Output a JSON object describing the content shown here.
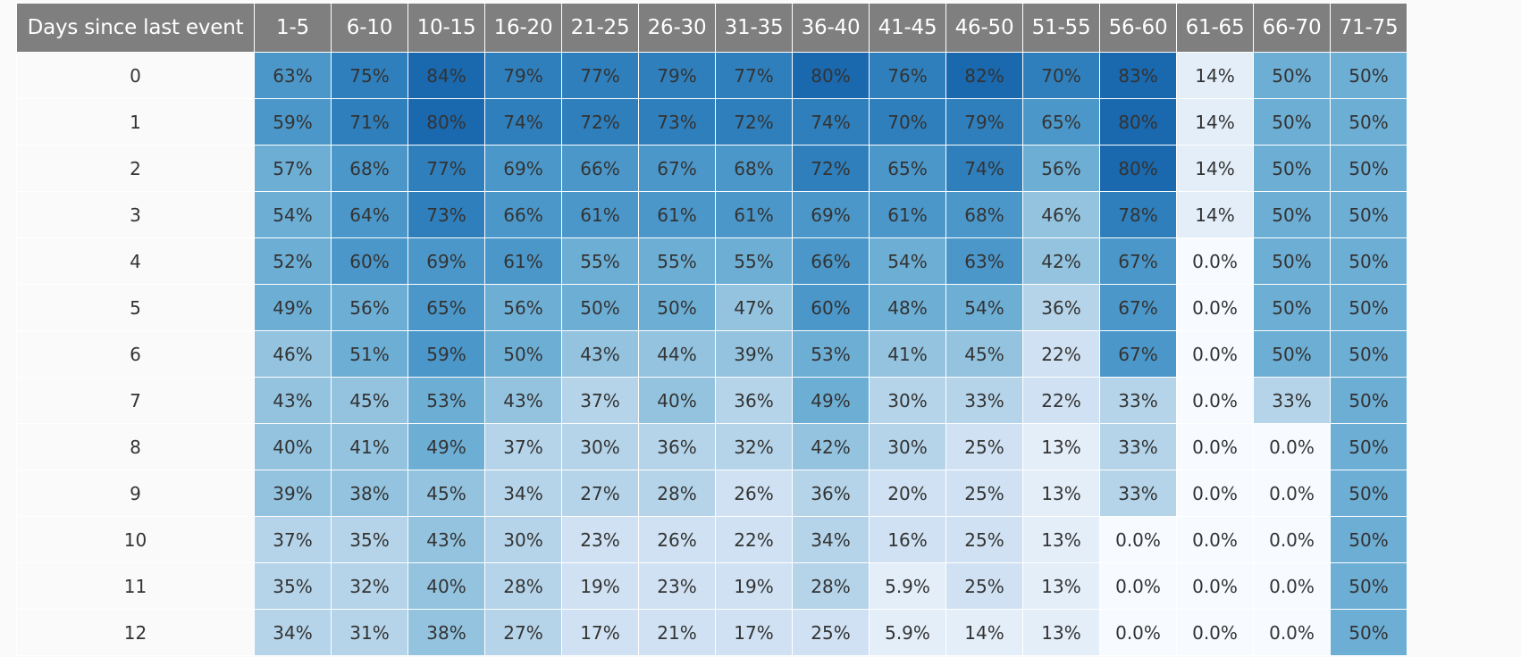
{
  "chart_data": {
    "type": "heatmap",
    "corner_label": "Days since last event",
    "columns": [
      "1-5",
      "6-10",
      "10-15",
      "16-20",
      "21-25",
      "26-30",
      "31-35",
      "36-40",
      "41-45",
      "46-50",
      "51-55",
      "56-60",
      "61-65",
      "66-70",
      "71-75"
    ],
    "rows": [
      {
        "label": "0",
        "cells": [
          "63%",
          "75%",
          "84%",
          "79%",
          "77%",
          "79%",
          "77%",
          "80%",
          "76%",
          "82%",
          "70%",
          "83%",
          "14%",
          "50%",
          "50%"
        ]
      },
      {
        "label": "1",
        "cells": [
          "59%",
          "71%",
          "80%",
          "74%",
          "72%",
          "73%",
          "72%",
          "74%",
          "70%",
          "79%",
          "65%",
          "80%",
          "14%",
          "50%",
          "50%"
        ]
      },
      {
        "label": "2",
        "cells": [
          "57%",
          "68%",
          "77%",
          "69%",
          "66%",
          "67%",
          "68%",
          "72%",
          "65%",
          "74%",
          "56%",
          "80%",
          "14%",
          "50%",
          "50%"
        ]
      },
      {
        "label": "3",
        "cells": [
          "54%",
          "64%",
          "73%",
          "66%",
          "61%",
          "61%",
          "61%",
          "69%",
          "61%",
          "68%",
          "46%",
          "78%",
          "14%",
          "50%",
          "50%"
        ]
      },
      {
        "label": "4",
        "cells": [
          "52%",
          "60%",
          "69%",
          "61%",
          "55%",
          "55%",
          "55%",
          "66%",
          "54%",
          "63%",
          "42%",
          "67%",
          "0.0%",
          "50%",
          "50%"
        ]
      },
      {
        "label": "5",
        "cells": [
          "49%",
          "56%",
          "65%",
          "56%",
          "50%",
          "50%",
          "47%",
          "60%",
          "48%",
          "54%",
          "36%",
          "67%",
          "0.0%",
          "50%",
          "50%"
        ]
      },
      {
        "label": "6",
        "cells": [
          "46%",
          "51%",
          "59%",
          "50%",
          "43%",
          "44%",
          "39%",
          "53%",
          "41%",
          "45%",
          "22%",
          "67%",
          "0.0%",
          "50%",
          "50%"
        ]
      },
      {
        "label": "7",
        "cells": [
          "43%",
          "45%",
          "53%",
          "43%",
          "37%",
          "40%",
          "36%",
          "49%",
          "30%",
          "33%",
          "22%",
          "33%",
          "0.0%",
          "33%",
          "50%"
        ]
      },
      {
        "label": "8",
        "cells": [
          "40%",
          "41%",
          "49%",
          "37%",
          "30%",
          "36%",
          "32%",
          "42%",
          "30%",
          "25%",
          "13%",
          "33%",
          "0.0%",
          "0.0%",
          "50%"
        ]
      },
      {
        "label": "9",
        "cells": [
          "39%",
          "38%",
          "45%",
          "34%",
          "27%",
          "28%",
          "26%",
          "36%",
          "20%",
          "25%",
          "13%",
          "33%",
          "0.0%",
          "0.0%",
          "50%"
        ]
      },
      {
        "label": "10",
        "cells": [
          "37%",
          "35%",
          "43%",
          "30%",
          "23%",
          "26%",
          "22%",
          "34%",
          "16%",
          "25%",
          "13%",
          "0.0%",
          "0.0%",
          "0.0%",
          "50%"
        ]
      },
      {
        "label": "11",
        "cells": [
          "35%",
          "32%",
          "40%",
          "28%",
          "19%",
          "23%",
          "19%",
          "28%",
          "5.9%",
          "25%",
          "13%",
          "0.0%",
          "0.0%",
          "0.0%",
          "50%"
        ]
      },
      {
        "label": "12",
        "cells": [
          "34%",
          "31%",
          "38%",
          "27%",
          "17%",
          "21%",
          "17%",
          "25%",
          "5.9%",
          "14%",
          "13%",
          "0.0%",
          "0.0%",
          "0.0%",
          "50%"
        ]
      }
    ],
    "colors": {
      "header_bg": "#7f7f7f",
      "header_text": "#ffffff",
      "cell_text": "#333333",
      "scale": [
        "#f7fbff",
        "#e3eef9",
        "#cfe1f2",
        "#b5d4e9",
        "#93c3df",
        "#6daed5",
        "#4b97c9",
        "#2f7fbc",
        "#1a68ae"
      ]
    }
  }
}
